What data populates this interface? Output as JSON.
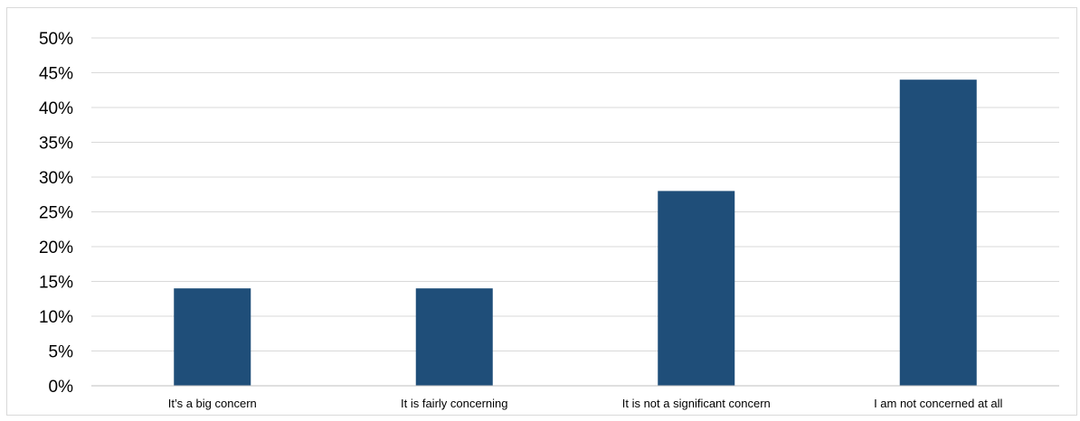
{
  "chart_data": {
    "type": "bar",
    "title": "",
    "xlabel": "",
    "ylabel": "",
    "categories": [
      "It’s a big concern",
      "It is fairly concerning",
      "It is not a significant concern",
      "I am not concerned at all"
    ],
    "values": [
      14,
      14,
      28,
      44
    ],
    "ylim": [
      0,
      50
    ],
    "yticks": [
      0,
      5,
      10,
      15,
      20,
      25,
      30,
      35,
      40,
      45,
      50
    ],
    "ytick_labels": [
      "0%",
      "5%",
      "10%",
      "15%",
      "20%",
      "25%",
      "30%",
      "35%",
      "40%",
      "45%",
      "50%"
    ],
    "grid": true,
    "legend": "none",
    "colors": {
      "bar": "#1f4e79",
      "grid": "#d9d9d9",
      "axis": "#bfbfbf",
      "text": "#000000"
    }
  }
}
